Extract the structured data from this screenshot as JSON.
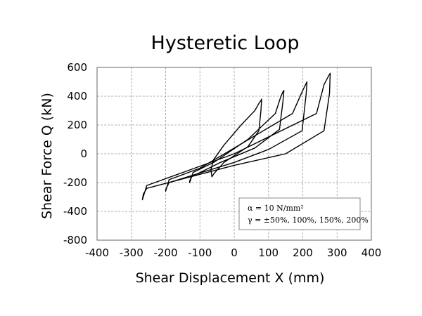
{
  "chart_data": {
    "type": "line",
    "title": "Hysteretic Loop",
    "xlabel": "Shear Displacement X (mm)",
    "ylabel": "Shear Force Q (kN)",
    "xlim": [
      -400,
      400
    ],
    "ylim": [
      -800,
      600
    ],
    "xticks": [
      -400,
      -300,
      -200,
      -100,
      0,
      100,
      200,
      300,
      400
    ],
    "yticks": [
      -800,
      -400,
      -200,
      0,
      200,
      400,
      600
    ],
    "ytick_labels": [
      "-800",
      "-400",
      "-200",
      "0",
      "200",
      "400",
      "600"
    ],
    "x_gridlines": [
      -300,
      -200,
      -100,
      0,
      100,
      200,
      300
    ],
    "y_gridlines": [
      -400,
      -200,
      0,
      200,
      400,
      600
    ],
    "annotation": [
      "α = 10 N/mm²",
      "γ = ±50%, 100%, 150%, 200%"
    ],
    "series": [
      {
        "x": [
          80,
          78,
          72,
          40,
          -30,
          -60,
          -65,
          -68,
          -60,
          -30,
          20,
          60,
          72,
          78,
          80
        ],
        "y": [
          380,
          300,
          160,
          50,
          -60,
          -140,
          -160,
          -110,
          -40,
          60,
          200,
          300,
          350,
          370,
          380
        ]
      },
      {
        "x": [
          145,
          142,
          132,
          60,
          -40,
          -125,
          -130,
          -130,
          -120,
          -60,
          40,
          120,
          135,
          142,
          145
        ],
        "y": [
          440,
          360,
          170,
          40,
          -60,
          -160,
          -190,
          -200,
          -130,
          -60,
          100,
          280,
          390,
          430,
          440
        ]
      },
      {
        "x": [
          212,
          210,
          198,
          100,
          0,
          -190,
          -200,
          -200,
          -190,
          -100,
          0,
          170,
          198,
          208,
          212
        ],
        "y": [
          500,
          420,
          160,
          30,
          -60,
          -200,
          -250,
          -260,
          -180,
          -100,
          40,
          280,
          430,
          480,
          500
        ]
      },
      {
        "x": [
          280,
          278,
          262,
          150,
          0,
          -255,
          -265,
          -268,
          -255,
          -150,
          0,
          240,
          262,
          275,
          280
        ],
        "y": [
          560,
          420,
          160,
          0,
          -80,
          -240,
          -280,
          -320,
          -220,
          -130,
          0,
          280,
          480,
          540,
          560
        ]
      }
    ]
  }
}
